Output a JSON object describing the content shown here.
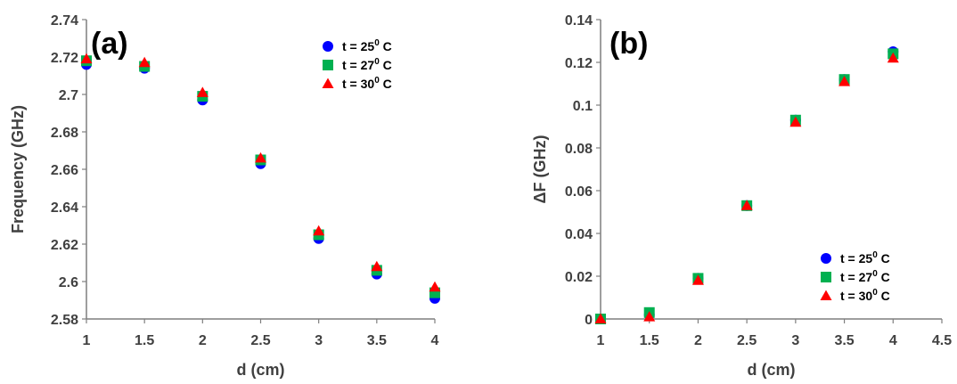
{
  "chart_data": [
    {
      "type": "scatter",
      "panel_label": "(a)",
      "xlabel": "d (cm)",
      "ylabel": "Frequency (GHz)",
      "xlim": [
        1,
        4
      ],
      "ylim": [
        2.58,
        2.74
      ],
      "xticks": [
        "1",
        "1.5",
        "2",
        "2.5",
        "3",
        "3.5",
        "4"
      ],
      "yticks": [
        "2.58",
        "2.6",
        "2.62",
        "2.64",
        "2.66",
        "2.68",
        "2.7",
        "2.72",
        "2.74"
      ],
      "grid": false,
      "legend_position": "top-right",
      "x": [
        1,
        1.5,
        2,
        2.5,
        3,
        3.5,
        4
      ],
      "series": [
        {
          "name": "t = 25",
          "sup": "0",
          "unit": " C",
          "marker": "circle",
          "color": "#0000ff",
          "values": [
            2.716,
            2.714,
            2.697,
            2.663,
            2.623,
            2.604,
            2.591
          ]
        },
        {
          "name": "t = 27",
          "sup": "0",
          "unit": " C",
          "marker": "square",
          "color": "#00b050",
          "values": [
            2.718,
            2.715,
            2.699,
            2.665,
            2.625,
            2.606,
            2.594
          ]
        },
        {
          "name": "t = 30",
          "sup": "0",
          "unit": " C",
          "marker": "triangle",
          "color": "#ff0000",
          "values": [
            2.719,
            2.717,
            2.701,
            2.666,
            2.627,
            2.608,
            2.597
          ]
        }
      ]
    },
    {
      "type": "scatter",
      "panel_label": "(b)",
      "xlabel": "d (cm)",
      "ylabel": "ΔF (GHz)",
      "xlim": [
        1,
        4.5
      ],
      "ylim": [
        0,
        0.14
      ],
      "xticks": [
        "1",
        "1.5",
        "2",
        "2.5",
        "3",
        "3.5",
        "4",
        "4.5"
      ],
      "yticks": [
        "0",
        "0.02",
        "0.04",
        "0.06",
        "0.08",
        "0.1",
        "0.12",
        "0.14"
      ],
      "grid": false,
      "legend_position": "bottom-right",
      "x": [
        1,
        1.5,
        2,
        2.5,
        3,
        3.5,
        4
      ],
      "series": [
        {
          "name": "t = 25",
          "sup": "0",
          "unit": " C",
          "marker": "circle",
          "color": "#0000ff",
          "values": [
            0,
            0.002,
            0.019,
            0.053,
            0.093,
            0.112,
            0.125
          ]
        },
        {
          "name": "t = 27",
          "sup": "0",
          "unit": " C",
          "marker": "square",
          "color": "#00b050",
          "values": [
            0,
            0.003,
            0.019,
            0.053,
            0.093,
            0.112,
            0.124
          ]
        },
        {
          "name": "t = 30",
          "sup": "0",
          "unit": " C",
          "marker": "triangle",
          "color": "#ff0000",
          "values": [
            0,
            0.001,
            0.018,
            0.053,
            0.092,
            0.111,
            0.122
          ]
        }
      ]
    }
  ]
}
